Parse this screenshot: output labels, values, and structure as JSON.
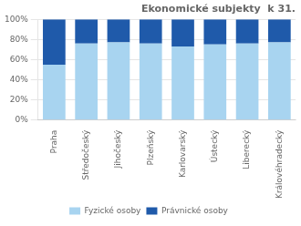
{
  "chart_data": {
    "type": "bar",
    "stacked": true,
    "title": "Ekonomické subjekty  k 31.",
    "categories": [
      "Praha",
      "Středočeský",
      "Jihočeský",
      "Plzeňský",
      "Karlovarský",
      "Ústecký",
      "Liberecký",
      "Královéhradecký"
    ],
    "series": [
      {
        "name": "Fyzické osoby",
        "color": "#a8d4f0",
        "values": [
          55.0,
          76.0,
          77.0,
          76.0,
          73.0,
          75.0,
          76.0,
          77.0
        ]
      },
      {
        "name": "Právnické osoby",
        "color": "#1f5aaa",
        "values": [
          45.0,
          24.0,
          23.0,
          24.0,
          27.0,
          25.0,
          24.0,
          23.0
        ]
      }
    ],
    "ylim": [
      0,
      100
    ],
    "yticks": [
      {
        "value": 0,
        "label": "0%"
      },
      {
        "value": 20,
        "label": "20%"
      },
      {
        "value": 40,
        "label": "40%"
      },
      {
        "value": 60,
        "label": "60%"
      },
      {
        "value": 80,
        "label": "80%"
      },
      {
        "value": 100,
        "label": "100%"
      }
    ],
    "grid": true,
    "legend": "bottom"
  }
}
